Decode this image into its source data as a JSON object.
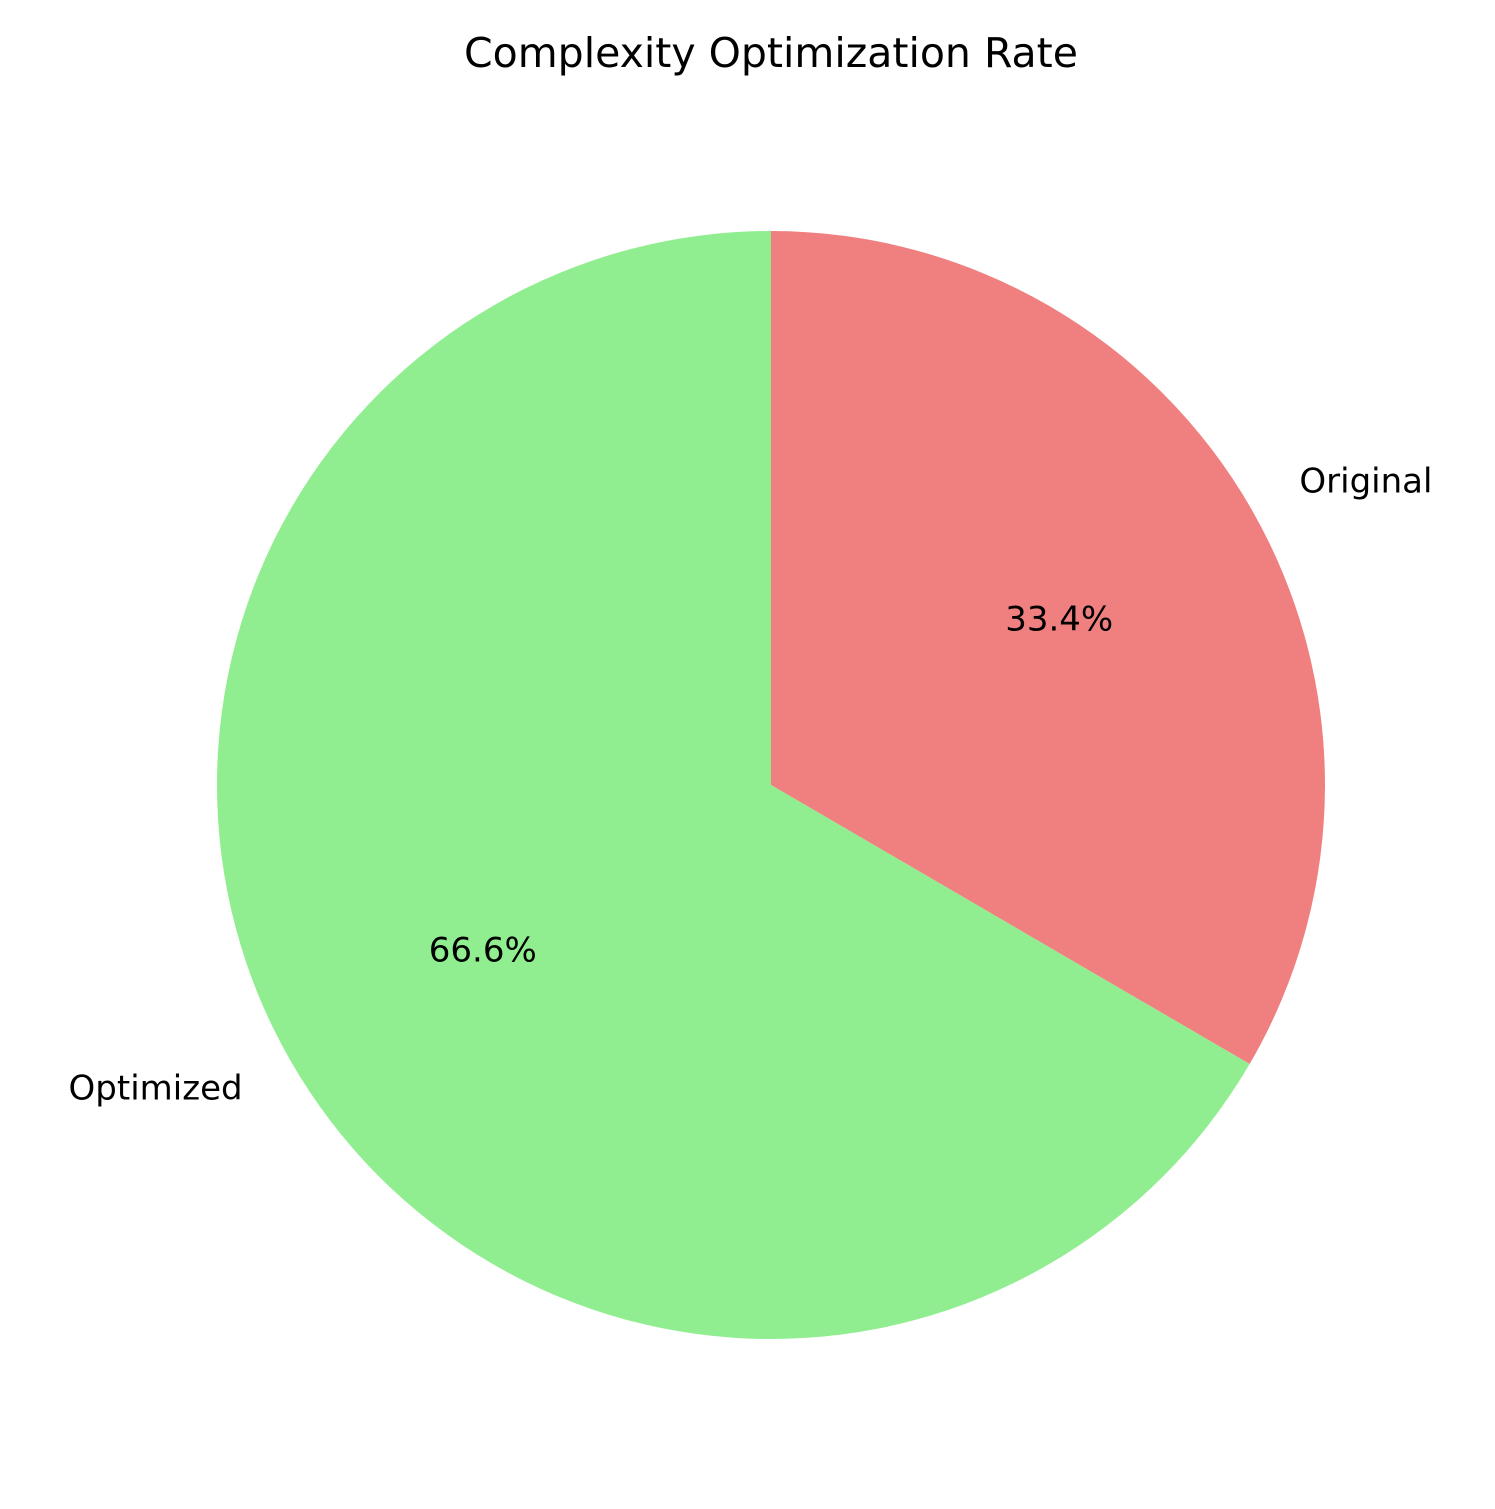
{
  "chart_data": {
    "type": "pie",
    "title": "Complexity Optimization Rate",
    "start_angle_deg": 90,
    "direction": "clockwise",
    "slices": [
      {
        "label": "Original",
        "value": 33.4,
        "pct_label": "33.4%",
        "color": "#f08080"
      },
      {
        "label": "Optimized",
        "value": 66.6,
        "pct_label": "66.6%",
        "color": "#90ee90"
      }
    ]
  }
}
